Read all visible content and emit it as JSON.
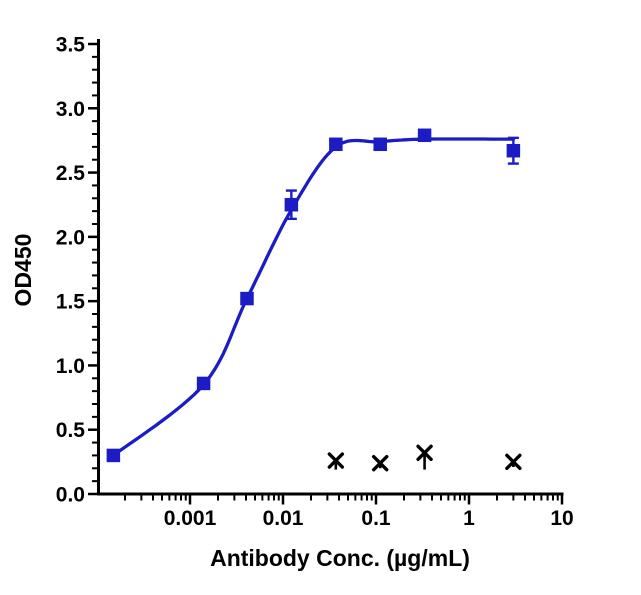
{
  "chart_data": {
    "type": "scatter",
    "subtype": "dose-response ELISA binding curve with sigmoidal fit",
    "title": "",
    "xlabel": "Antibody Conc. (µg/mL)",
    "ylabel": "OD450",
    "x_scale": "log10",
    "x_range": [
      0.0001,
      10
    ],
    "x_tick_values": [
      0.001,
      0.01,
      0.1,
      1,
      10
    ],
    "x_tick_labels": [
      "0.001",
      "0.01",
      "0.1",
      "1",
      "10"
    ],
    "y_range": [
      0,
      3.5
    ],
    "y_tick_values": [
      0.0,
      0.5,
      1.0,
      1.5,
      2.0,
      2.5,
      3.0,
      3.5
    ],
    "y_tick_labels": [
      "0.0",
      "0.5",
      "1.0",
      "1.5",
      "2.0",
      "2.5",
      "3.0",
      "3.5"
    ],
    "y_minor_step": 0.1,
    "grid": false,
    "legend": "none",
    "colors": {
      "antibody_series": "#1c1cc4",
      "control_series": "#000000",
      "axis": "#000000"
    },
    "series": [
      {
        "name": "antibody-binding",
        "marker": "filled-square",
        "color": "#1c1cc4",
        "x": [
          0.00015,
          0.0014,
          0.0041,
          0.0123,
          0.037,
          0.111,
          0.333,
          3
        ],
        "y": [
          0.3,
          0.86,
          1.52,
          2.25,
          2.72,
          2.72,
          2.79,
          2.67
        ],
        "yerr": [
          0.02,
          0.02,
          0.02,
          0.11,
          0.02,
          0.02,
          0.03,
          0.1
        ]
      },
      {
        "name": "control",
        "marker": "x-cross",
        "color": "#000000",
        "x": [
          0.037,
          0.111,
          0.333,
          3
        ],
        "y": [
          0.26,
          0.24,
          0.32,
          0.25
        ],
        "yerr_low": [
          0.07,
          0.04,
          0.13,
          0.04
        ]
      }
    ],
    "fit_curve": {
      "name": "sigmoidal-4PL-fit",
      "color": "#1c1cc4",
      "x": [
        0.00015,
        0.0014,
        0.0041,
        0.0123,
        0.037,
        0.111,
        0.333,
        3
      ],
      "y": [
        0.3,
        0.85,
        1.52,
        2.21,
        2.7,
        2.74,
        2.76,
        2.76
      ]
    }
  }
}
